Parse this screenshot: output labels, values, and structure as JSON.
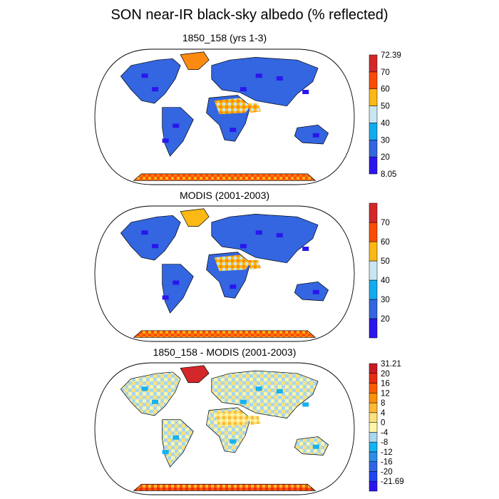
{
  "title": "SON near-IR black-sky albedo (% reflected)",
  "panels": [
    {
      "title": "1850_158 (yrs 1-3)",
      "colorbar": {
        "colors": [
          "#2a16ee",
          "#3366e0",
          "#12acee",
          "#c8e6f0",
          "#fcb814",
          "#fc4a04",
          "#d2282a"
        ],
        "labels": [
          "8.05",
          "20",
          "30",
          "40",
          "50",
          "60",
          "70",
          "72.39"
        ]
      }
    },
    {
      "title": "MODIS (2001-2003)",
      "colorbar": {
        "colors": [
          "#2a16ee",
          "#3366e0",
          "#12acee",
          "#c8e6f0",
          "#fcb814",
          "#fc4a04",
          "#d2282a"
        ],
        "labels": [
          "20",
          "30",
          "40",
          "50",
          "60",
          "70"
        ]
      }
    },
    {
      "title": "1850_158 - MODIS (2001-2003)",
      "colorbar": {
        "colors": [
          "#2a16ee",
          "#1f44f4",
          "#2f66e6",
          "#2a8ee8",
          "#14b2f0",
          "#a8d6ee",
          "#fcf6a8",
          "#fce27c",
          "#fcba34",
          "#fc9008",
          "#fc5a02",
          "#ea2a10",
          "#c81a24"
        ],
        "labels": [
          "-21.69",
          "-20",
          "-16",
          "-12",
          "-8",
          "-4",
          "0",
          "4",
          "8",
          "12",
          "16",
          "20",
          "31.21"
        ]
      }
    }
  ]
}
